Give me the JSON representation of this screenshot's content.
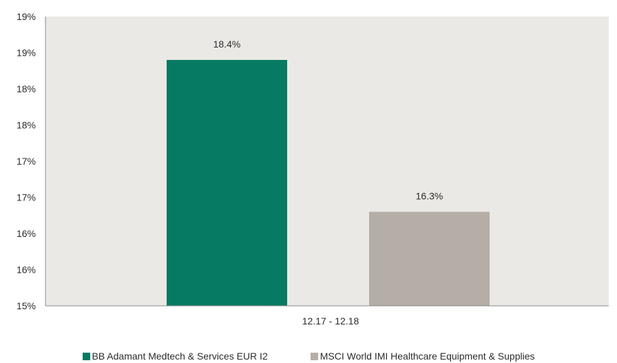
{
  "chart_data": {
    "type": "bar",
    "categories": [
      "12.17 - 12.18"
    ],
    "series": [
      {
        "name": "BB Adamant Medtech & Services EUR I2",
        "value": 18.4,
        "label": "18.4%",
        "color": "#077a63"
      },
      {
        "name": "MSCI World IMI Healthcare Equipment & Supplies",
        "value": 16.3,
        "label": "16.3%",
        "color": "#b5aea7"
      }
    ],
    "ylim": [
      15,
      19.0
    ],
    "yticks": [
      "15%",
      "16%",
      "16%",
      "17%",
      "17%",
      "18%",
      "18%",
      "19%",
      "19%"
    ],
    "plot_background": "#ebe9e5",
    "grid": false,
    "legend_position": "bottom"
  }
}
